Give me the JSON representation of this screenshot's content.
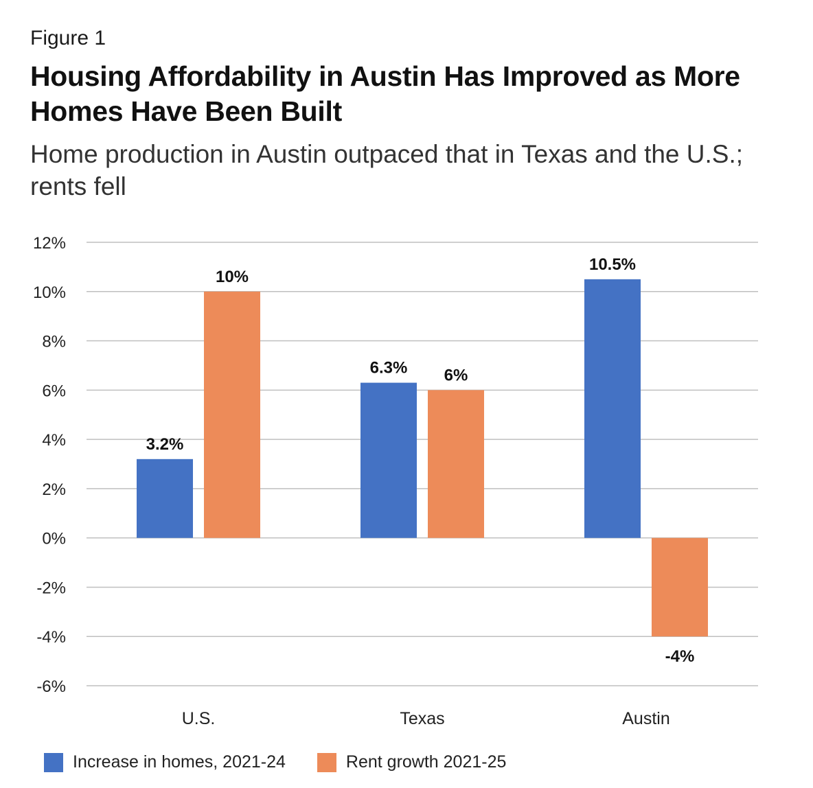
{
  "header": {
    "figure_label": "Figure 1",
    "title": "Housing Affordability in Austin Has Improved as More Homes Have Been Built",
    "subtitle": "Home production in Austin outpaced that in Texas and the U.S.; rents fell"
  },
  "chart_data": {
    "type": "bar",
    "title": "Housing Affordability in Austin Has Improved as More Homes Have Been Built",
    "subtitle": "Home production in Austin outpaced that in Texas and the U.S.; rents fell",
    "categories": [
      "U.S.",
      "Texas",
      "Austin"
    ],
    "series": [
      {
        "name": "Increase in homes, 2021-24",
        "color": "#4472c4",
        "values": [
          3.2,
          6.3,
          10.5
        ],
        "labels": [
          "3.2%",
          "6.3%",
          "10.5%"
        ]
      },
      {
        "name": "Rent growth 2021-25",
        "color": "#ed8b59",
        "values": [
          10,
          6,
          -4
        ],
        "labels": [
          "10%",
          "6%",
          "-4%"
        ]
      }
    ],
    "ylim": [
      -6,
      12
    ],
    "yticks": [
      12,
      10,
      8,
      6,
      4,
      2,
      0,
      -2,
      -4,
      -6
    ],
    "ytick_labels": [
      "12%",
      "10%",
      "8%",
      "6%",
      "4%",
      "2%",
      "0%",
      "-2%",
      "-4%",
      "-6%"
    ],
    "xlabel": "",
    "ylabel": "",
    "grid": true,
    "legend_position": "bottom-left"
  }
}
